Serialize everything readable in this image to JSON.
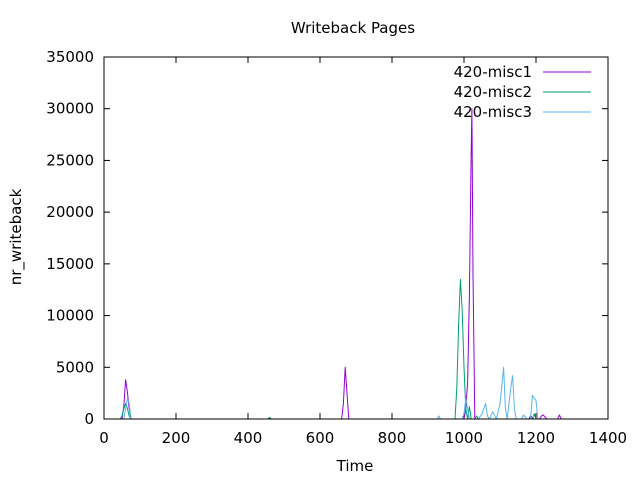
{
  "chart_data": {
    "type": "line",
    "title": "Writeback Pages",
    "xlabel": "Time",
    "ylabel": "nr_writeback",
    "xlim": [
      0,
      1400
    ],
    "ylim": [
      0,
      35000
    ],
    "xticks": [
      0,
      200,
      400,
      600,
      800,
      1000,
      1200,
      1400
    ],
    "yticks": [
      0,
      5000,
      10000,
      15000,
      20000,
      25000,
      30000,
      35000
    ],
    "grid": false,
    "legend_position": "top-right",
    "series": [
      {
        "name": "420-misc1",
        "color": "#9400d3",
        "points": [
          [
            0,
            0
          ],
          [
            50,
            0
          ],
          [
            55,
            1200
          ],
          [
            60,
            3800
          ],
          [
            65,
            2600
          ],
          [
            70,
            1000
          ],
          [
            75,
            0
          ],
          [
            660,
            0
          ],
          [
            665,
            1500
          ],
          [
            670,
            5000
          ],
          [
            675,
            2500
          ],
          [
            680,
            0
          ],
          [
            1000,
            0
          ],
          [
            1005,
            1000
          ],
          [
            1010,
            3500
          ],
          [
            1015,
            12000
          ],
          [
            1020,
            26000
          ],
          [
            1022,
            30000
          ],
          [
            1025,
            14000
          ],
          [
            1030,
            0
          ],
          [
            1180,
            0
          ],
          [
            1185,
            300
          ],
          [
            1190,
            100
          ],
          [
            1195,
            0
          ],
          [
            1210,
            0
          ],
          [
            1215,
            300
          ],
          [
            1220,
            400
          ],
          [
            1225,
            200
          ],
          [
            1230,
            0
          ],
          [
            1260,
            0
          ],
          [
            1265,
            400
          ],
          [
            1270,
            0
          ],
          [
            1280,
            0
          ]
        ]
      },
      {
        "name": "420-misc2",
        "color": "#009e73",
        "points": [
          [
            0,
            0
          ],
          [
            45,
            0
          ],
          [
            50,
            300
          ],
          [
            55,
            1000
          ],
          [
            60,
            1500
          ],
          [
            65,
            1000
          ],
          [
            70,
            300
          ],
          [
            75,
            0
          ],
          [
            455,
            0
          ],
          [
            460,
            150
          ],
          [
            465,
            0
          ],
          [
            975,
            0
          ],
          [
            980,
            3000
          ],
          [
            985,
            9000
          ],
          [
            990,
            13500
          ],
          [
            995,
            10500
          ],
          [
            1000,
            5000
          ],
          [
            1005,
            1000
          ],
          [
            1010,
            0
          ],
          [
            1015,
            1200
          ],
          [
            1020,
            0
          ],
          [
            1030,
            0
          ],
          [
            1035,
            300
          ],
          [
            1040,
            0
          ],
          [
            1190,
            0
          ],
          [
            1195,
            500
          ],
          [
            1200,
            0
          ]
        ]
      },
      {
        "name": "420-misc3",
        "color": "#56b4e9",
        "points": [
          [
            0,
            0
          ],
          [
            55,
            0
          ],
          [
            60,
            1000
          ],
          [
            65,
            2000
          ],
          [
            70,
            1500
          ],
          [
            75,
            0
          ],
          [
            925,
            0
          ],
          [
            930,
            300
          ],
          [
            935,
            0
          ],
          [
            995,
            0
          ],
          [
            1000,
            500
          ],
          [
            1005,
            2000
          ],
          [
            1010,
            1000
          ],
          [
            1015,
            0
          ],
          [
            1040,
            0
          ],
          [
            1050,
            500
          ],
          [
            1060,
            1500
          ],
          [
            1065,
            300
          ],
          [
            1070,
            0
          ],
          [
            1080,
            700
          ],
          [
            1090,
            0
          ],
          [
            1100,
            1500
          ],
          [
            1105,
            3200
          ],
          [
            1110,
            5000
          ],
          [
            1115,
            1000
          ],
          [
            1120,
            0
          ],
          [
            1125,
            1500
          ],
          [
            1130,
            3000
          ],
          [
            1135,
            4200
          ],
          [
            1140,
            1000
          ],
          [
            1145,
            0
          ],
          [
            1160,
            0
          ],
          [
            1165,
            400
          ],
          [
            1170,
            200
          ],
          [
            1175,
            0
          ],
          [
            1185,
            0
          ],
          [
            1190,
            2300
          ],
          [
            1195,
            2000
          ],
          [
            1200,
            1800
          ],
          [
            1205,
            0
          ]
        ]
      }
    ]
  }
}
